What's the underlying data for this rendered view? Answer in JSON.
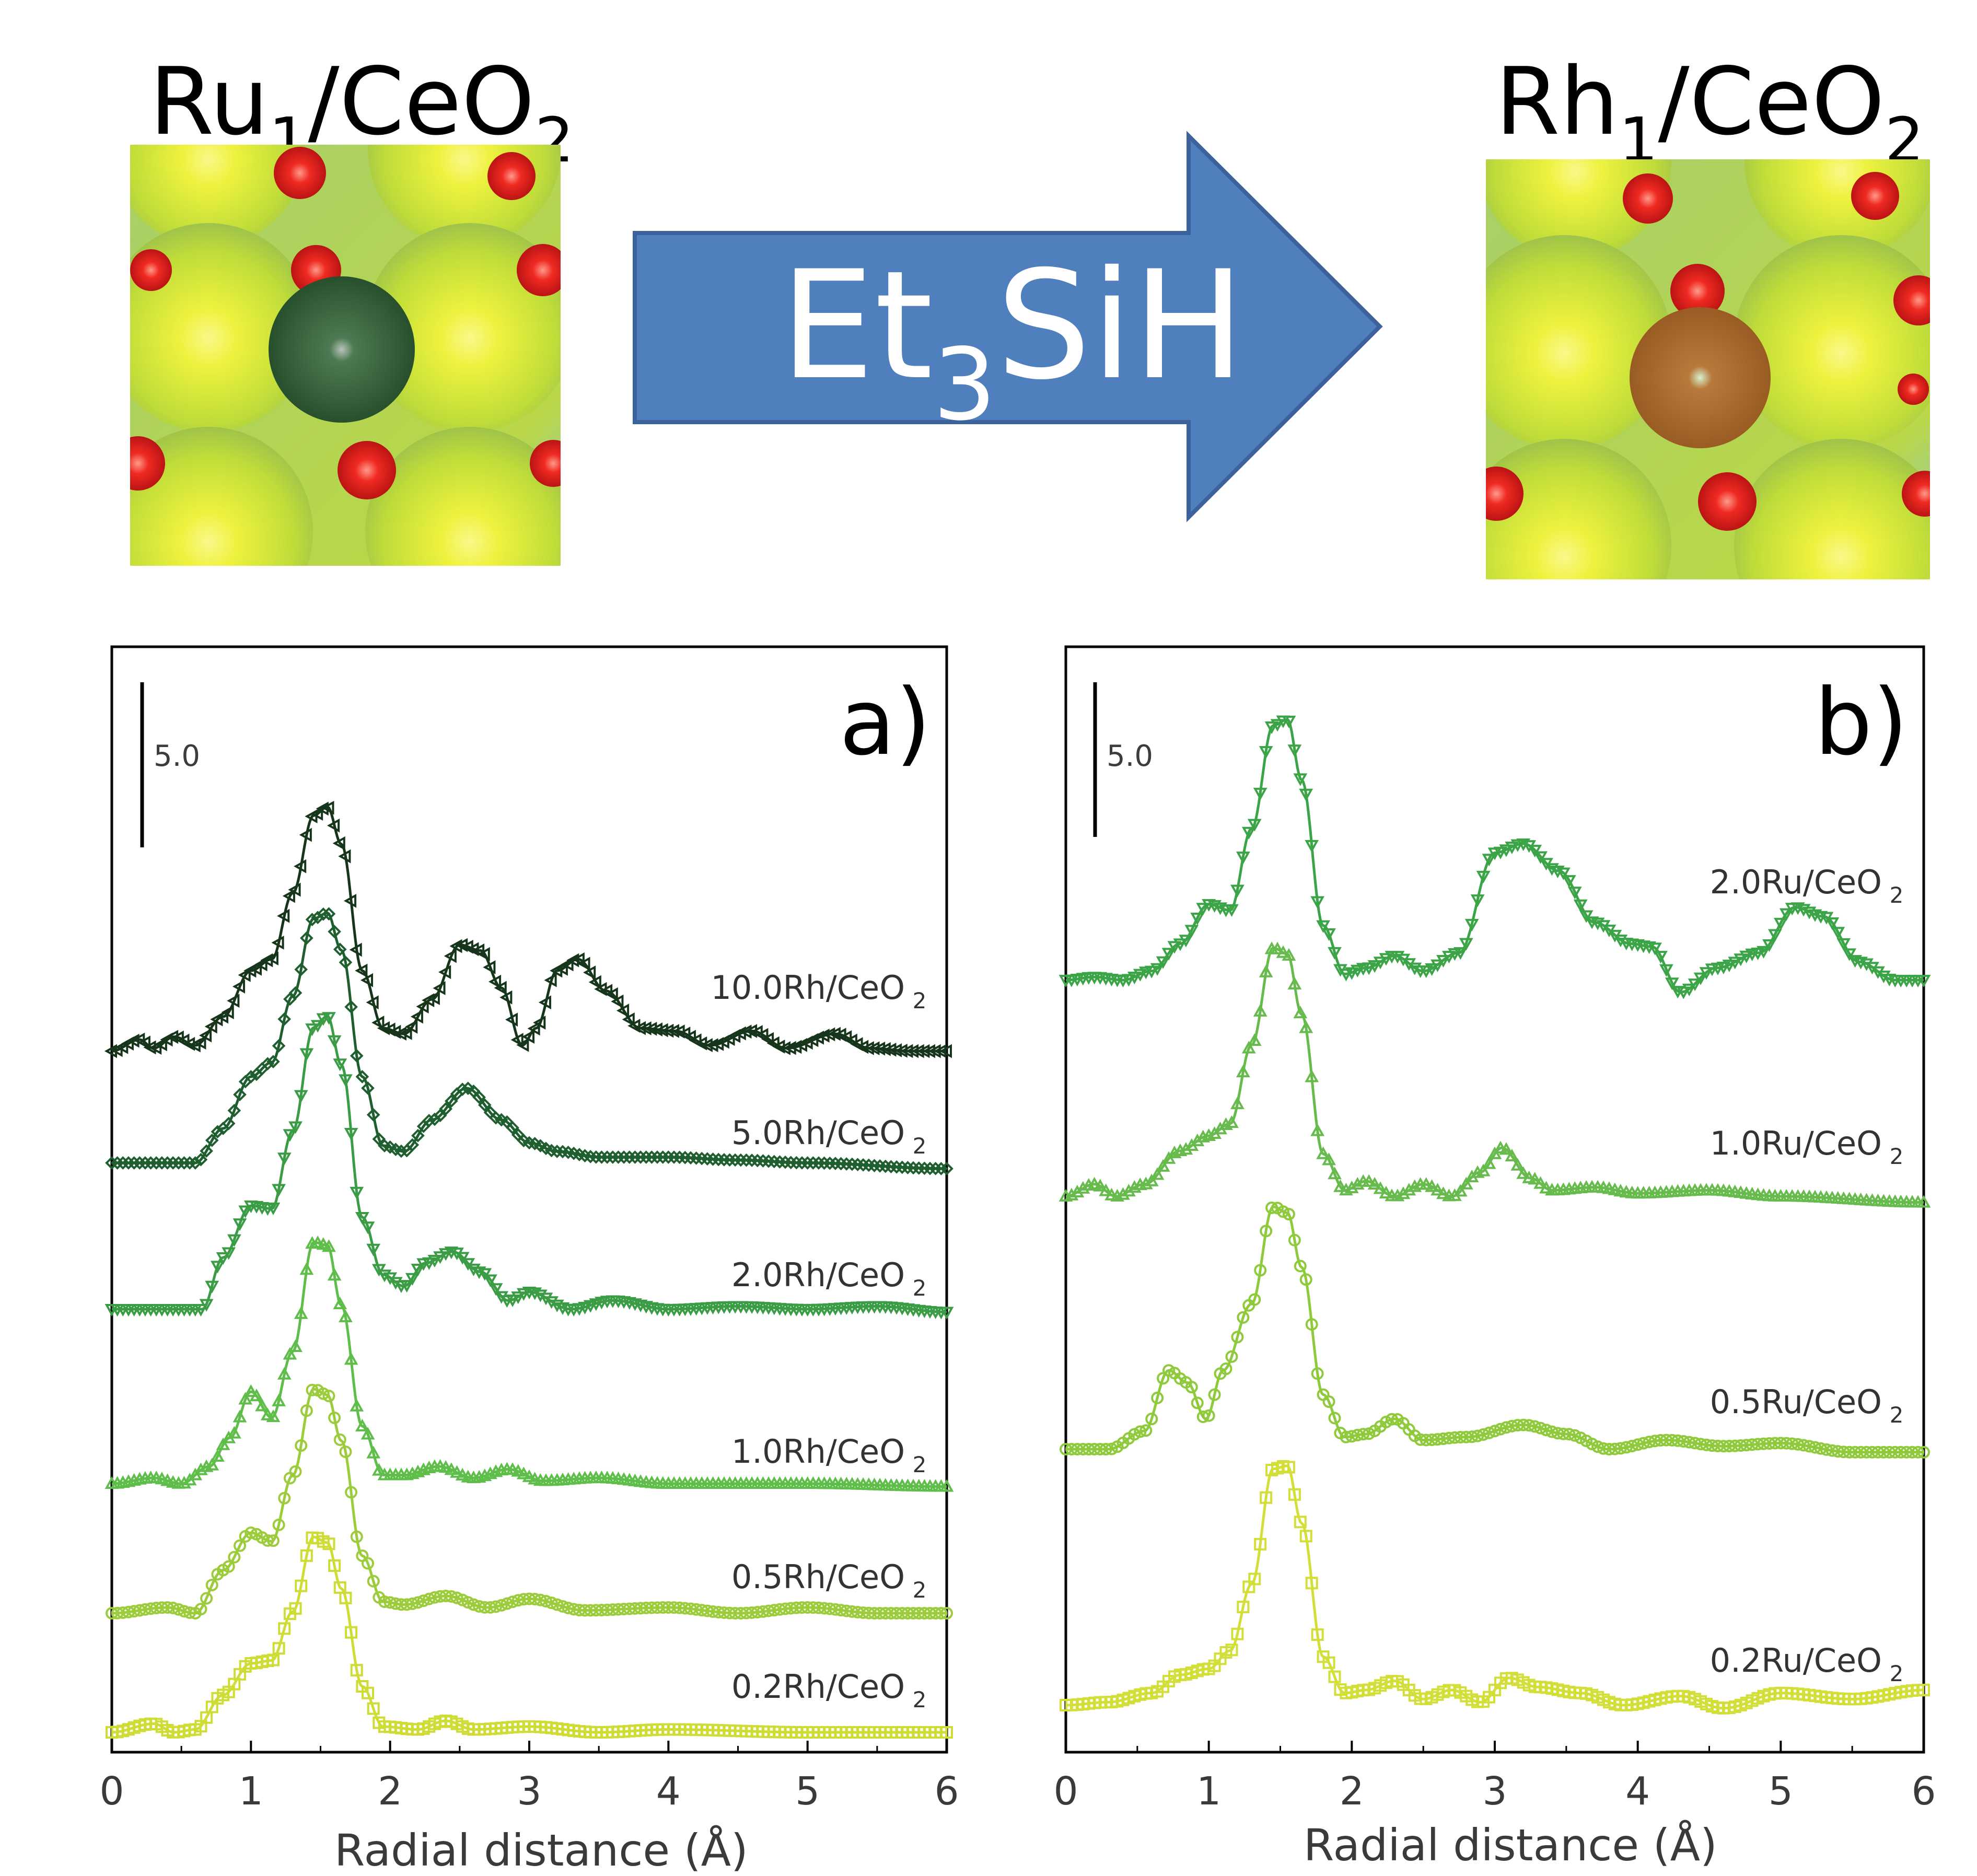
{
  "header": {
    "left_label": {
      "main": "Ru",
      "sub1": "1",
      "mid": "/CeO",
      "sub2": "2"
    },
    "right_label": {
      "main": "Rh",
      "sub1": "1",
      "mid": "/CeO",
      "sub2": "2"
    },
    "arrow_label": {
      "main": "Et",
      "sub": "3",
      "tail": "SiH"
    }
  },
  "colors": {
    "arrow_fill": "#4f7fbd",
    "arrow_stroke": "#3b629a",
    "ceria_green": "#b8d94a",
    "oxygen_red": "#e2151b",
    "ru_atom": "#2f5a2f",
    "rh_atom": "#b06a2e"
  },
  "chart_data": [
    {
      "type": "line",
      "panel_label": "a)",
      "scale_bar_label": "5.0",
      "xlabel": "Radial distance (Å)",
      "xlim": [
        0,
        6
      ],
      "x_ticks": [
        "0",
        "1",
        "2",
        "3",
        "4",
        "5",
        "6"
      ],
      "series": [
        {
          "name": "10.0Rh/CeO",
          "sub": "2",
          "color": "#17351b",
          "marker": "triangle-left",
          "points": [
            [
              0,
              0.0
            ],
            [
              0.2,
              0.4
            ],
            [
              0.3,
              0.1
            ],
            [
              0.45,
              0.5
            ],
            [
              0.6,
              0.2
            ],
            [
              0.8,
              1.2
            ],
            [
              1.0,
              2.8
            ],
            [
              1.15,
              3.2
            ],
            [
              1.3,
              5.5
            ],
            [
              1.45,
              8.2
            ],
            [
              1.55,
              8.5
            ],
            [
              1.65,
              7.2
            ],
            [
              1.8,
              2.8
            ],
            [
              1.95,
              0.8
            ],
            [
              2.1,
              0.6
            ],
            [
              2.3,
              1.8
            ],
            [
              2.5,
              3.7
            ],
            [
              2.65,
              3.5
            ],
            [
              2.8,
              2.2
            ],
            [
              2.95,
              0.2
            ],
            [
              3.05,
              0.8
            ],
            [
              3.2,
              2.8
            ],
            [
              3.35,
              3.2
            ],
            [
              3.55,
              2.1
            ],
            [
              3.8,
              0.8
            ],
            [
              4.05,
              0.7
            ],
            [
              4.3,
              0.2
            ],
            [
              4.6,
              0.7
            ],
            [
              4.85,
              0.1
            ],
            [
              5.2,
              0.6
            ],
            [
              5.45,
              0.1
            ],
            [
              5.75,
              0.0
            ],
            [
              6.0,
              0.0
            ]
          ]
        },
        {
          "name": "5.0Rh/CeO",
          "sub": "2",
          "color": "#1f5e2f",
          "marker": "diamond",
          "points": [
            [
              0,
              0.0
            ],
            [
              0.6,
              0.0
            ],
            [
              0.8,
              1.2
            ],
            [
              1.0,
              3.0
            ],
            [
              1.15,
              3.5
            ],
            [
              1.3,
              5.8
            ],
            [
              1.45,
              8.5
            ],
            [
              1.55,
              8.7
            ],
            [
              1.65,
              7.4
            ],
            [
              1.8,
              3.0
            ],
            [
              1.95,
              0.6
            ],
            [
              2.1,
              0.4
            ],
            [
              2.3,
              1.5
            ],
            [
              2.55,
              2.6
            ],
            [
              2.8,
              1.5
            ],
            [
              3.0,
              0.7
            ],
            [
              3.2,
              0.4
            ],
            [
              3.5,
              0.2
            ],
            [
              4.0,
              0.2
            ],
            [
              4.5,
              0.1
            ],
            [
              5.0,
              0.0
            ],
            [
              6.0,
              -0.2
            ]
          ]
        },
        {
          "name": "2.0Rh/CeO",
          "sub": "2",
          "color": "#3a9c44",
          "marker": "triangle-down",
          "points": [
            [
              0,
              0.0
            ],
            [
              0.4,
              0.0
            ],
            [
              0.65,
              0.0
            ],
            [
              0.8,
              1.8
            ],
            [
              1.0,
              3.6
            ],
            [
              1.15,
              3.5
            ],
            [
              1.3,
              6.2
            ],
            [
              1.45,
              9.8
            ],
            [
              1.55,
              10.2
            ],
            [
              1.65,
              8.5
            ],
            [
              1.8,
              3.2
            ],
            [
              1.95,
              1.2
            ],
            [
              2.1,
              0.8
            ],
            [
              2.25,
              1.6
            ],
            [
              2.45,
              2.0
            ],
            [
              2.65,
              1.3
            ],
            [
              2.85,
              0.3
            ],
            [
              3.0,
              0.6
            ],
            [
              3.3,
              0.0
            ],
            [
              3.6,
              0.3
            ],
            [
              4.0,
              0.0
            ],
            [
              4.5,
              0.1
            ],
            [
              5.0,
              0.0
            ],
            [
              5.5,
              0.1
            ],
            [
              6.0,
              -0.1
            ]
          ]
        },
        {
          "name": "1.0Rh/CeO",
          "sub": "2",
          "color": "#5fbe4a",
          "marker": "triangle-up",
          "points": [
            [
              0,
              0.0
            ],
            [
              0.3,
              0.2
            ],
            [
              0.5,
              0.0
            ],
            [
              0.7,
              0.6
            ],
            [
              0.85,
              1.6
            ],
            [
              1.0,
              3.2
            ],
            [
              1.15,
              2.3
            ],
            [
              1.3,
              4.6
            ],
            [
              1.45,
              8.4
            ],
            [
              1.55,
              8.3
            ],
            [
              1.65,
              6.2
            ],
            [
              1.8,
              2.0
            ],
            [
              1.95,
              0.3
            ],
            [
              2.1,
              0.3
            ],
            [
              2.35,
              0.6
            ],
            [
              2.6,
              0.2
            ],
            [
              2.85,
              0.5
            ],
            [
              3.1,
              0.1
            ],
            [
              3.5,
              0.2
            ],
            [
              4.0,
              0.0
            ],
            [
              5.0,
              0.0
            ],
            [
              6.0,
              -0.1
            ]
          ]
        },
        {
          "name": "0.5Rh/CeO",
          "sub": "2",
          "color": "#9ccc3c",
          "marker": "circle",
          "points": [
            [
              0,
              0.0
            ],
            [
              0.4,
              0.2
            ],
            [
              0.6,
              0.0
            ],
            [
              0.8,
              1.5
            ],
            [
              1.0,
              2.8
            ],
            [
              1.15,
              2.5
            ],
            [
              1.3,
              4.8
            ],
            [
              1.45,
              7.8
            ],
            [
              1.55,
              7.6
            ],
            [
              1.65,
              6.0
            ],
            [
              1.8,
              2.0
            ],
            [
              1.95,
              0.4
            ],
            [
              2.1,
              0.3
            ],
            [
              2.4,
              0.6
            ],
            [
              2.7,
              0.2
            ],
            [
              3.0,
              0.5
            ],
            [
              3.4,
              0.1
            ],
            [
              4.0,
              0.2
            ],
            [
              4.5,
              0.0
            ],
            [
              5.0,
              0.2
            ],
            [
              5.5,
              0.0
            ],
            [
              6.0,
              0.0
            ]
          ]
        },
        {
          "name": "0.2Rh/CeO",
          "sub": "2",
          "color": "#cfdc35",
          "marker": "square",
          "points": [
            [
              0,
              0.0
            ],
            [
              0.3,
              0.3
            ],
            [
              0.45,
              0.0
            ],
            [
              0.6,
              0.1
            ],
            [
              0.8,
              1.3
            ],
            [
              1.0,
              2.4
            ],
            [
              1.15,
              2.5
            ],
            [
              1.3,
              4.2
            ],
            [
              1.45,
              6.8
            ],
            [
              1.55,
              6.6
            ],
            [
              1.65,
              5.0
            ],
            [
              1.8,
              1.6
            ],
            [
              1.95,
              0.2
            ],
            [
              2.2,
              0.1
            ],
            [
              2.4,
              0.4
            ],
            [
              2.6,
              0.1
            ],
            [
              3.0,
              0.2
            ],
            [
              3.5,
              0.0
            ],
            [
              4.0,
              0.1
            ],
            [
              5.0,
              0.0
            ],
            [
              6.0,
              0.0
            ]
          ]
        }
      ]
    },
    {
      "type": "line",
      "panel_label": "b)",
      "scale_bar_label": "5.0",
      "xlabel": "Radial distance (Å)",
      "xlim": [
        0,
        6
      ],
      "x_ticks": [
        "0",
        "1",
        "2",
        "3",
        "4",
        "5",
        "6"
      ],
      "series": [
        {
          "name": "2.0Ru/CeO",
          "sub": "2",
          "color": "#3aa447",
          "marker": "triangle-down",
          "points": [
            [
              0,
              0.0
            ],
            [
              0.2,
              0.1
            ],
            [
              0.4,
              0.0
            ],
            [
              0.6,
              0.3
            ],
            [
              0.8,
              1.2
            ],
            [
              1.0,
              2.5
            ],
            [
              1.15,
              2.3
            ],
            [
              1.3,
              5.0
            ],
            [
              1.45,
              8.4
            ],
            [
              1.55,
              8.6
            ],
            [
              1.65,
              6.6
            ],
            [
              1.8,
              1.8
            ],
            [
              1.95,
              0.2
            ],
            [
              2.1,
              0.4
            ],
            [
              2.3,
              0.8
            ],
            [
              2.5,
              0.3
            ],
            [
              2.75,
              0.9
            ],
            [
              3.0,
              4.2
            ],
            [
              3.2,
              4.5
            ],
            [
              3.45,
              3.6
            ],
            [
              3.7,
              1.9
            ],
            [
              3.95,
              1.2
            ],
            [
              4.1,
              1.1
            ],
            [
              4.3,
              -0.4
            ],
            [
              4.55,
              0.4
            ],
            [
              4.85,
              0.9
            ],
            [
              5.1,
              2.4
            ],
            [
              5.3,
              2.1
            ],
            [
              5.55,
              0.6
            ],
            [
              5.8,
              0.0
            ],
            [
              6.0,
              0.0
            ]
          ]
        },
        {
          "name": "1.0Ru/CeO",
          "sub": "2",
          "color": "#66bb4c",
          "marker": "triangle-up",
          "points": [
            [
              0,
              0.0
            ],
            [
              0.2,
              0.4
            ],
            [
              0.35,
              0.0
            ],
            [
              0.55,
              0.4
            ],
            [
              0.8,
              1.5
            ],
            [
              1.0,
              2.0
            ],
            [
              1.15,
              2.4
            ],
            [
              1.3,
              5.0
            ],
            [
              1.45,
              8.2
            ],
            [
              1.55,
              8.0
            ],
            [
              1.65,
              6.0
            ],
            [
              1.8,
              1.4
            ],
            [
              1.95,
              0.2
            ],
            [
              2.1,
              0.5
            ],
            [
              2.3,
              0.0
            ],
            [
              2.5,
              0.4
            ],
            [
              2.7,
              0.0
            ],
            [
              2.9,
              0.8
            ],
            [
              3.05,
              1.6
            ],
            [
              3.25,
              0.6
            ],
            [
              3.4,
              0.2
            ],
            [
              3.7,
              0.3
            ],
            [
              4.0,
              0.1
            ],
            [
              4.5,
              0.2
            ],
            [
              5.0,
              0.0
            ],
            [
              6.0,
              -0.2
            ]
          ]
        },
        {
          "name": "0.5Ru/CeO",
          "sub": "2",
          "color": "#8fc93c",
          "marker": "circle",
          "points": [
            [
              0,
              0.0
            ],
            [
              0.3,
              0.0
            ],
            [
              0.55,
              0.6
            ],
            [
              0.72,
              2.6
            ],
            [
              0.85,
              2.2
            ],
            [
              0.98,
              1.0
            ],
            [
              1.1,
              2.6
            ],
            [
              1.3,
              4.8
            ],
            [
              1.45,
              8.0
            ],
            [
              1.55,
              7.8
            ],
            [
              1.65,
              6.0
            ],
            [
              1.8,
              1.8
            ],
            [
              1.95,
              0.4
            ],
            [
              2.1,
              0.5
            ],
            [
              2.3,
              1.0
            ],
            [
              2.5,
              0.3
            ],
            [
              2.8,
              0.4
            ],
            [
              3.2,
              0.8
            ],
            [
              3.5,
              0.5
            ],
            [
              3.8,
              0.0
            ],
            [
              4.2,
              0.3
            ],
            [
              4.6,
              0.1
            ],
            [
              5.0,
              0.2
            ],
            [
              5.5,
              -0.1
            ],
            [
              6.0,
              -0.1
            ]
          ]
        },
        {
          "name": "0.2Ru/CeO",
          "sub": "2",
          "color": "#d3df38",
          "marker": "square",
          "points": [
            [
              0,
              0.0
            ],
            [
              0.3,
              0.1
            ],
            [
              0.6,
              0.4
            ],
            [
              0.8,
              1.0
            ],
            [
              1.0,
              1.2
            ],
            [
              1.15,
              1.8
            ],
            [
              1.3,
              4.0
            ],
            [
              1.45,
              7.8
            ],
            [
              1.55,
              7.9
            ],
            [
              1.65,
              6.0
            ],
            [
              1.8,
              1.6
            ],
            [
              1.95,
              0.4
            ],
            [
              2.1,
              0.5
            ],
            [
              2.3,
              0.8
            ],
            [
              2.5,
              0.2
            ],
            [
              2.7,
              0.5
            ],
            [
              2.9,
              0.1
            ],
            [
              3.1,
              0.9
            ],
            [
              3.3,
              0.6
            ],
            [
              3.6,
              0.4
            ],
            [
              3.9,
              0.0
            ],
            [
              4.3,
              0.3
            ],
            [
              4.6,
              -0.1
            ],
            [
              5.0,
              0.4
            ],
            [
              5.5,
              0.2
            ],
            [
              6.0,
              0.5
            ]
          ]
        }
      ]
    }
  ]
}
